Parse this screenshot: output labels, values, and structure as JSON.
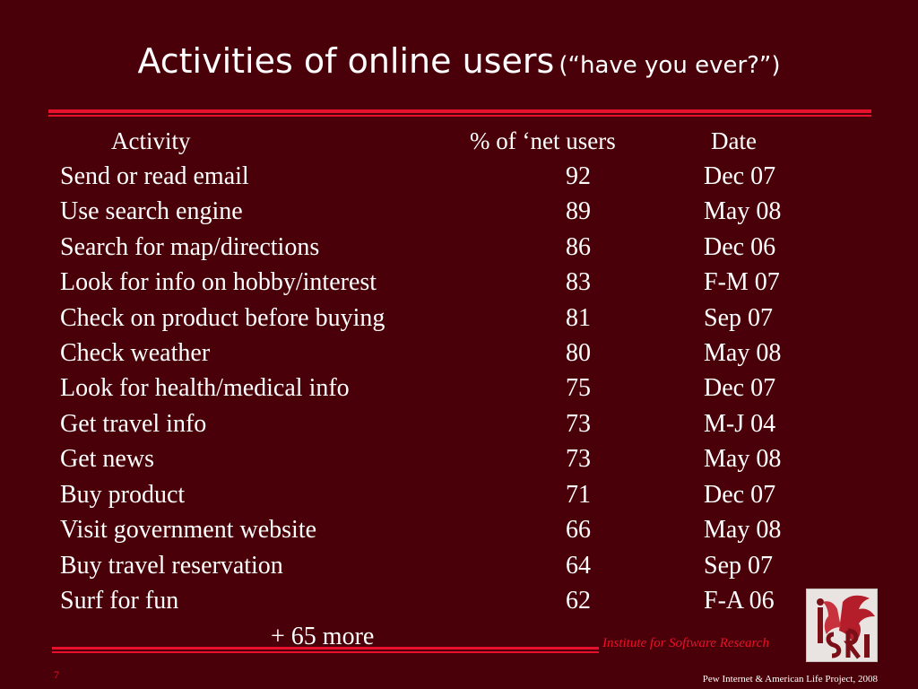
{
  "slide": {
    "title_main": "Activities of online users",
    "title_sub": "(“have you ever?”)",
    "table": {
      "headers": {
        "activity": "Activity",
        "percent": "% of ‘net users",
        "date": "Date"
      },
      "rows": [
        {
          "activity": "Send or read email",
          "percent": "92",
          "date": "Dec 07"
        },
        {
          "activity": "Use search engine",
          "percent": "89",
          "date": "May 08"
        },
        {
          "activity": "Search for map/directions",
          "percent": "86",
          "date": "Dec 06"
        },
        {
          "activity": "Look for info on hobby/interest",
          "percent": "83",
          "date": "F-M 07"
        },
        {
          "activity": "Check on product before buying",
          "percent": "81",
          "date": "Sep 07"
        },
        {
          "activity": "Check weather",
          "percent": "80",
          "date": "May 08"
        },
        {
          "activity": "Look for health/medical info",
          "percent": "75",
          "date": "Dec 07"
        },
        {
          "activity": "Get travel info",
          "percent": "73",
          "date": "M-J 04"
        },
        {
          "activity": "Get news",
          "percent": "73",
          "date": "May 08"
        },
        {
          "activity": "Buy product",
          "percent": "71",
          "date": "Dec 07"
        },
        {
          "activity": "Visit government website",
          "percent": "66",
          "date": "May 08"
        },
        {
          "activity": "Buy travel reservation",
          "percent": "64",
          "date": "Sep 07"
        },
        {
          "activity": "Surf for fun",
          "percent": "62",
          "date": "F-A 06"
        }
      ],
      "more": "+ 65 more"
    },
    "institute": "Institute for Software Research",
    "logo_icon": "isri-griffin-logo-icon",
    "page_number": "7",
    "footer": "Pew Internet & American Life Project, 2008",
    "colors": {
      "background": "#4a0008",
      "accent": "#e8112d",
      "text": "#ffffff"
    }
  }
}
